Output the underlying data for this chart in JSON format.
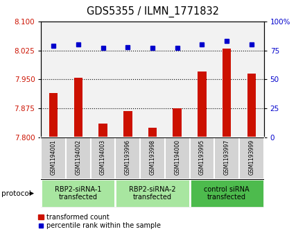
{
  "title": "GDS5355 / ILMN_1771832",
  "samples": [
    "GSM1194001",
    "GSM1194002",
    "GSM1194003",
    "GSM1193996",
    "GSM1193998",
    "GSM1194000",
    "GSM1193995",
    "GSM1193997",
    "GSM1193999"
  ],
  "red_values": [
    7.915,
    7.955,
    7.835,
    7.868,
    7.825,
    7.876,
    7.97,
    8.03,
    7.965
  ],
  "blue_values": [
    79,
    80,
    77,
    78,
    77,
    77,
    80,
    83,
    80
  ],
  "groups": [
    {
      "label": "RBP2-siRNA-1\ntransfected",
      "start": 0,
      "end": 3,
      "color": "#a8e6a0"
    },
    {
      "label": "RBP2-siRNA-2\ntransfected",
      "start": 3,
      "end": 6,
      "color": "#a8e6a0"
    },
    {
      "label": "control siRNA\ntransfected",
      "start": 6,
      "end": 9,
      "color": "#4dbb4d"
    }
  ],
  "ylim_left": [
    7.8,
    8.1
  ],
  "ylim_right": [
    0,
    100
  ],
  "yticks_left": [
    7.8,
    7.875,
    7.95,
    8.025,
    8.1
  ],
  "yticks_right": [
    0,
    25,
    50,
    75,
    100
  ],
  "bar_color": "#CC1100",
  "dot_color": "#0000CC",
  "bar_bottom": 7.8,
  "hline_values": [
    8.025,
    7.95,
    7.875
  ],
  "legend_dot_label": "percentile rank within the sample",
  "legend_bar_label": "transformed count",
  "protocol_label": "protocol",
  "bg_color_plot": "#f2f2f2",
  "bg_color_sample": "#d3d3d3",
  "bar_width": 0.35
}
